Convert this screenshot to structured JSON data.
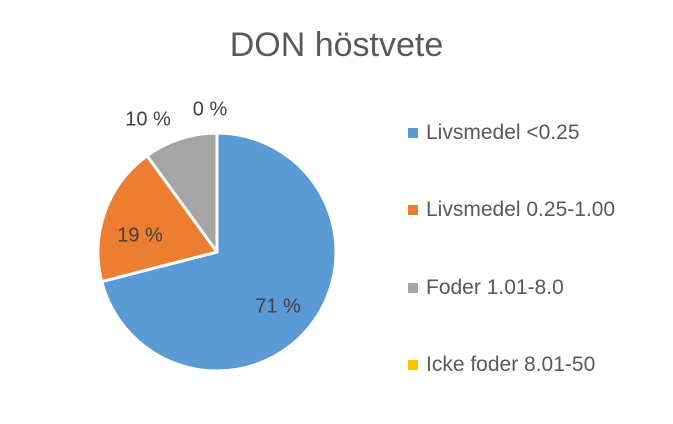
{
  "chart_data": {
    "type": "pie",
    "title": "DON höstvete",
    "categories": [
      "Livsmedel <0.25",
      "Livsmedel 0.25-1.00",
      "Foder 1.01-8.0",
      "Icke foder 8.01-50"
    ],
    "values": [
      71,
      19,
      10,
      0
    ],
    "data_labels": [
      "71 %",
      "19 %",
      "10 %",
      "0 %"
    ],
    "colors": [
      "#5B9BD5",
      "#ED7D31",
      "#A5A5A5",
      "#FFC000"
    ],
    "legend_position": "right",
    "start_angle_deg": 0,
    "direction": "clockwise"
  }
}
